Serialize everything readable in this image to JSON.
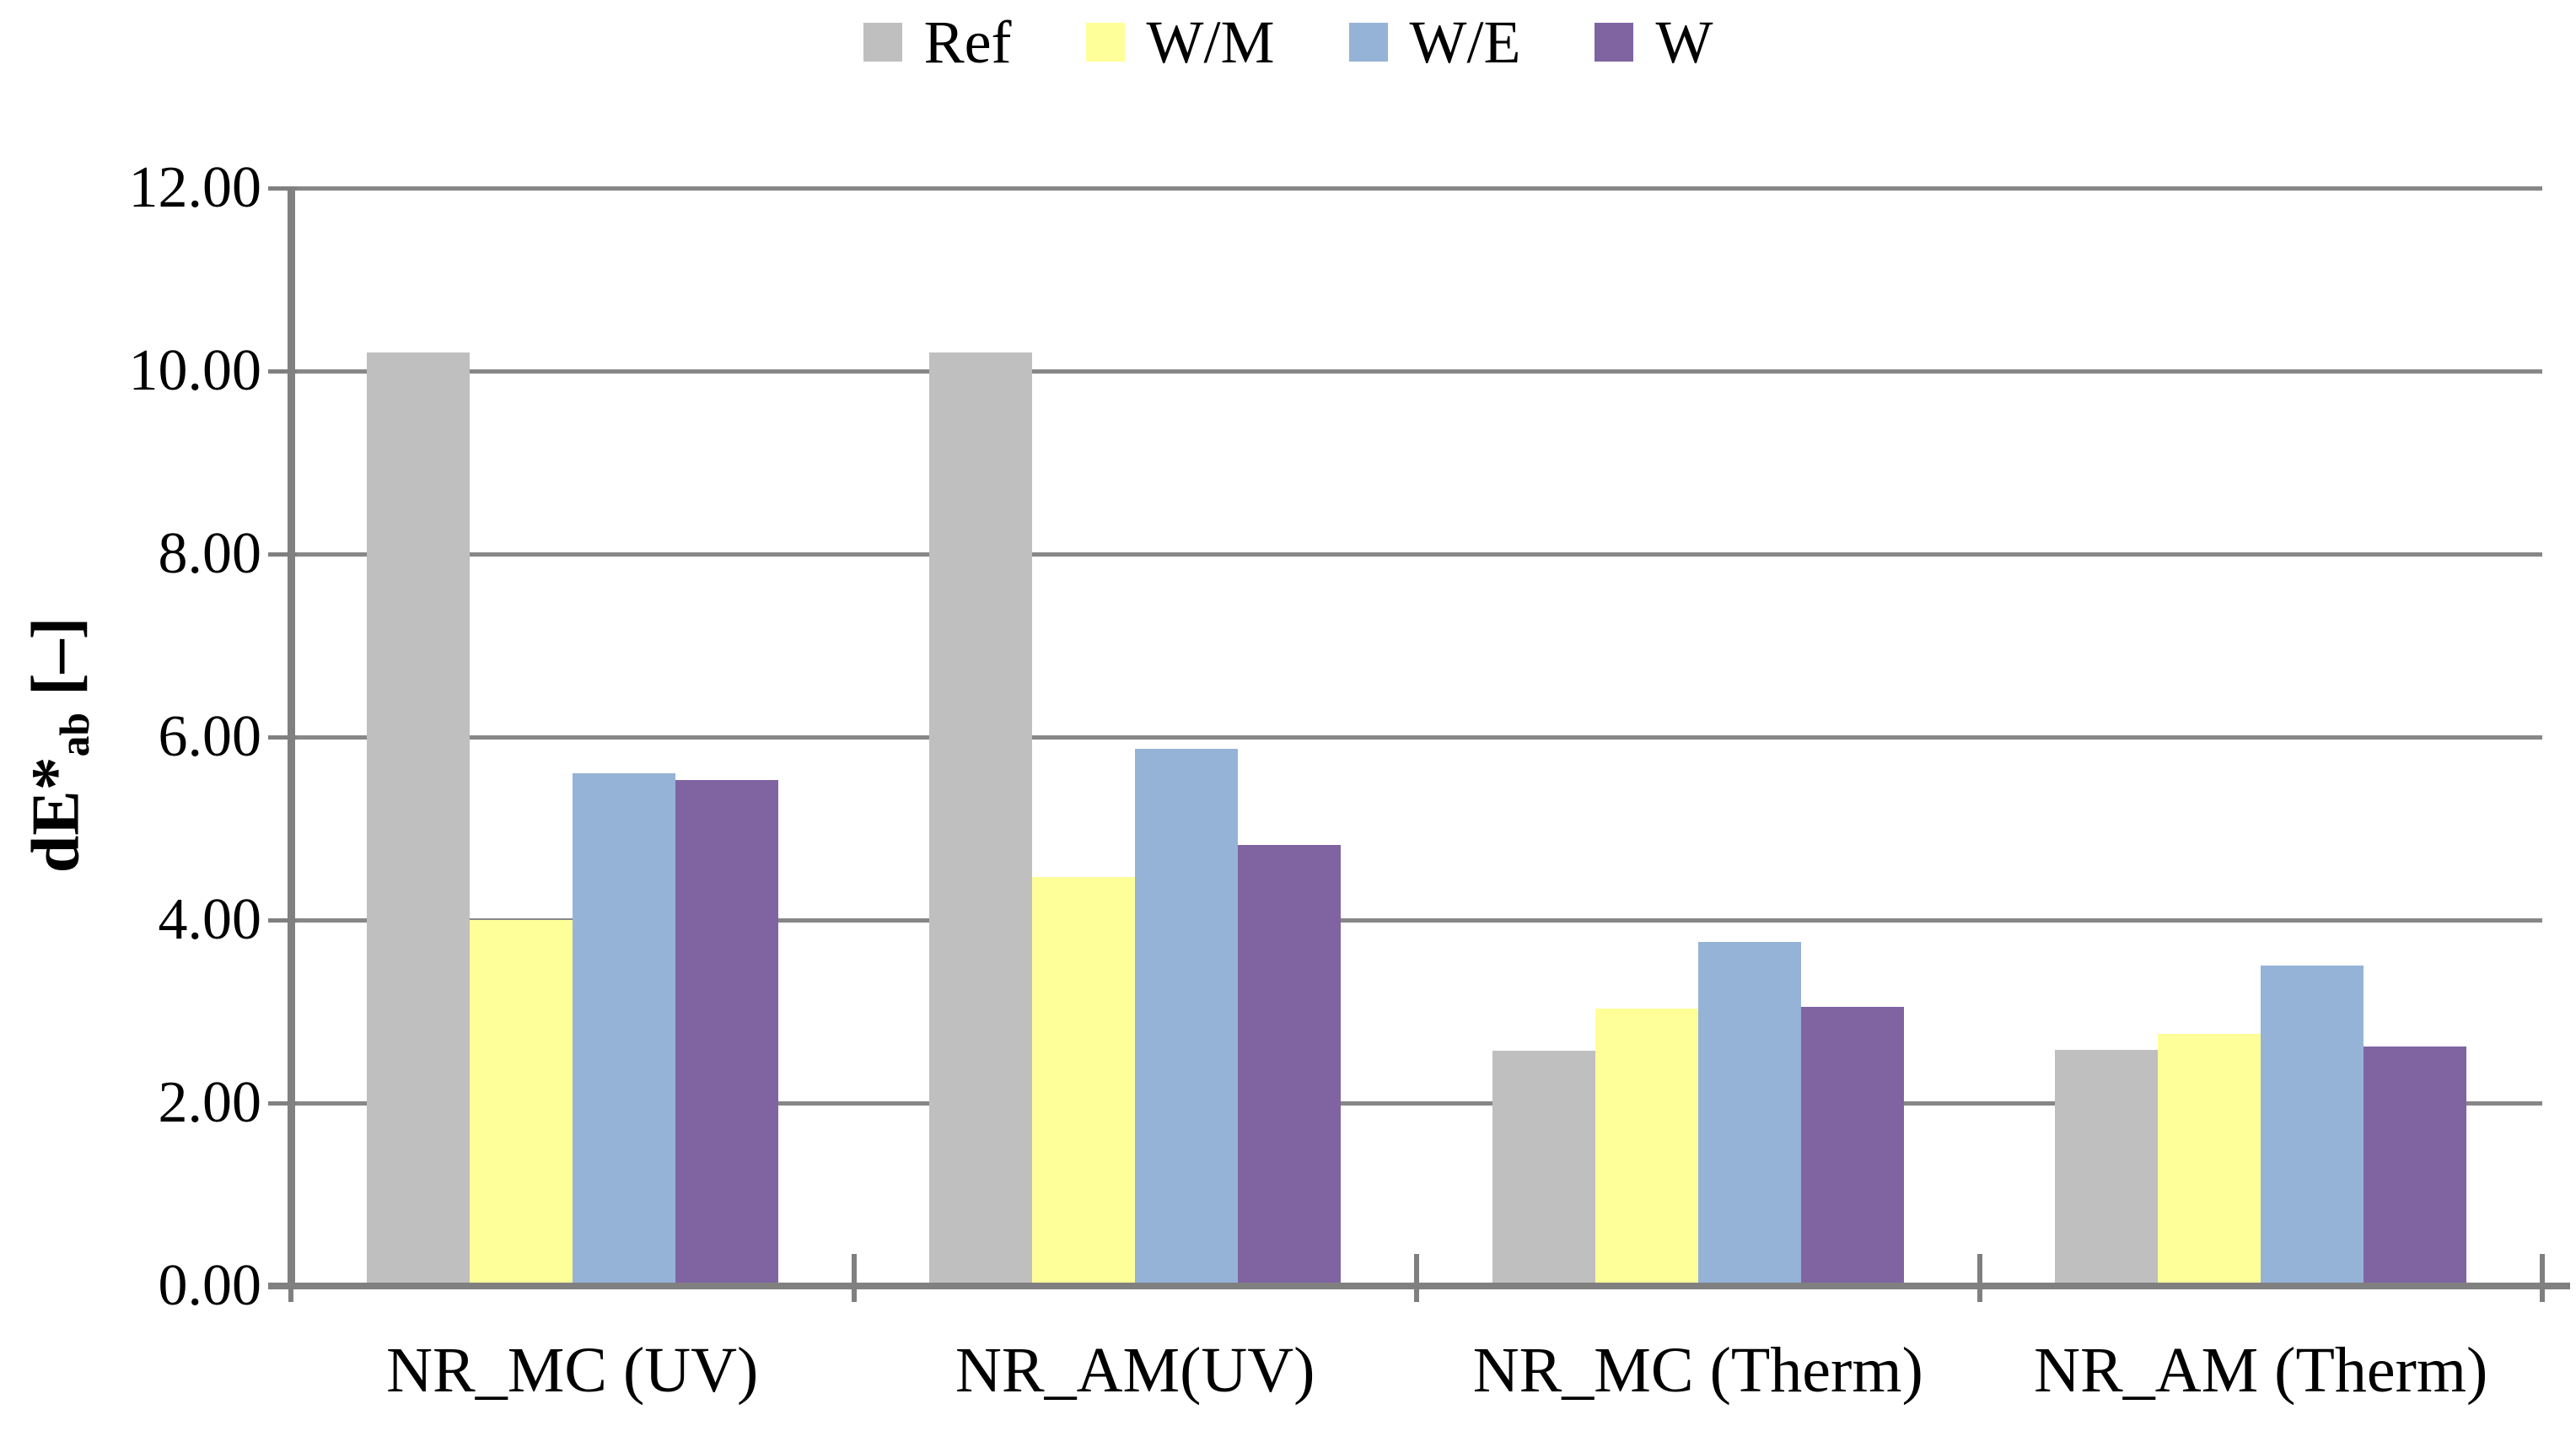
{
  "chart_data": {
    "type": "bar",
    "title": "",
    "categories": [
      "NR_MC (UV)",
      "NR_AM(UV)",
      "NR_MC (Therm)",
      "NR_AM (Therm)"
    ],
    "series": [
      {
        "name": "Ref",
        "color": "#BFBFBF",
        "values": [
          10.2,
          10.2,
          2.57,
          2.58
        ]
      },
      {
        "name": "W/M",
        "color": "#FFFF99",
        "values": [
          4.0,
          4.47,
          3.03,
          2.76
        ]
      },
      {
        "name": "W/E",
        "color": "#95B3D7",
        "values": [
          5.6,
          5.87,
          3.76,
          3.5
        ]
      },
      {
        "name": "W",
        "color": "#8064A2",
        "values": [
          5.53,
          4.82,
          3.05,
          2.62
        ]
      }
    ],
    "ylabel": "dE*ab [–]",
    "ylabel_parts": {
      "base": "dE*",
      "sub": "ab",
      "unit": " [–]"
    },
    "xlabel": "",
    "ylim": [
      0,
      12
    ],
    "y_step": 2,
    "y_ticks": [
      "0.00",
      "2.00",
      "4.00",
      "6.00",
      "8.00",
      "10.00",
      "12.00"
    ],
    "grid": true,
    "legend_position": "top-center",
    "gridline_color": "#878787",
    "axis_color": "#808080",
    "text_color": "#000000",
    "background_color": "#FFFFFF"
  }
}
